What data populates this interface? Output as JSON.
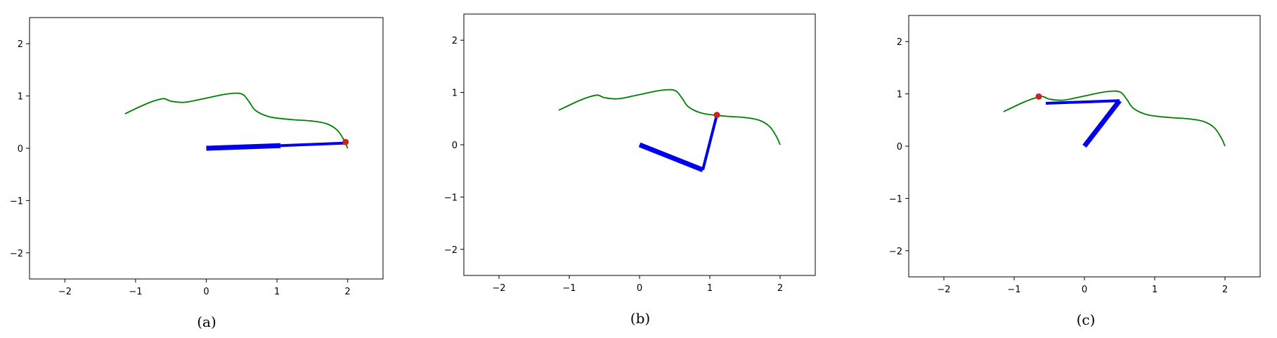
{
  "chart_data": [
    {
      "type": "line",
      "caption": "(a)",
      "xlim": [
        -2.5,
        2.5
      ],
      "ylim": [
        -2.5,
        2.5
      ],
      "xticks": [
        -2,
        -1,
        0,
        1,
        2
      ],
      "yticks": [
        -2,
        -1,
        0,
        1,
        2
      ],
      "tick_labels_x": [
        "−2",
        "−1",
        "0",
        "1",
        "2"
      ],
      "tick_labels_y": [
        "−2",
        "−1",
        "0",
        "1",
        "2"
      ],
      "grid": false,
      "curve": {
        "color": "#008000",
        "x": [
          -1.15,
          -0.9,
          -0.75,
          -0.6,
          -0.5,
          -0.3,
          0.0,
          0.3,
          0.5,
          0.6,
          0.7,
          0.9,
          1.2,
          1.5,
          1.7,
          1.85,
          1.95,
          2.0
        ],
        "y": [
          0.66,
          0.82,
          0.9,
          0.95,
          0.9,
          0.88,
          0.96,
          1.04,
          1.04,
          0.9,
          0.72,
          0.6,
          0.55,
          0.52,
          0.47,
          0.35,
          0.15,
          0.0
        ]
      },
      "arm": {
        "color": "#0000ee",
        "links": [
          [
            0.0,
            0.0,
            1.05,
            0.05
          ],
          [
            1.05,
            0.05,
            2.0,
            0.1
          ]
        ],
        "widths": [
          7,
          4
        ]
      },
      "end_effector": {
        "x": 1.97,
        "y": 0.12,
        "color": "#cc2222"
      }
    },
    {
      "type": "line",
      "caption": "(b)",
      "xlim": [
        -2.5,
        2.5
      ],
      "ylim": [
        -2.5,
        2.5
      ],
      "xticks": [
        -2,
        -1,
        0,
        1,
        2
      ],
      "yticks": [
        -2,
        -1,
        0,
        1,
        2
      ],
      "tick_labels_x": [
        "−2",
        "−1",
        "0",
        "1",
        "2"
      ],
      "tick_labels_y": [
        "−2",
        "−1",
        "0",
        "1",
        "2"
      ],
      "grid": false,
      "curve": {
        "color": "#008000",
        "x": [
          -1.15,
          -0.9,
          -0.75,
          -0.6,
          -0.5,
          -0.3,
          0.0,
          0.3,
          0.5,
          0.6,
          0.7,
          0.9,
          1.2,
          1.5,
          1.7,
          1.85,
          1.95,
          2.0
        ],
        "y": [
          0.66,
          0.82,
          0.9,
          0.95,
          0.9,
          0.88,
          0.96,
          1.04,
          1.04,
          0.9,
          0.72,
          0.6,
          0.55,
          0.52,
          0.47,
          0.35,
          0.15,
          0.0
        ]
      },
      "arm": {
        "color": "#0000ee",
        "links": [
          [
            0.0,
            0.0,
            0.9,
            -0.48
          ],
          [
            0.9,
            -0.48,
            1.1,
            0.57
          ]
        ],
        "widths": [
          7,
          4
        ]
      },
      "end_effector": {
        "x": 1.1,
        "y": 0.57,
        "color": "#cc2222"
      }
    },
    {
      "type": "line",
      "caption": "(c)",
      "xlim": [
        -2.5,
        2.5
      ],
      "ylim": [
        -2.5,
        2.5
      ],
      "xticks": [
        -2,
        -1,
        0,
        1,
        2
      ],
      "yticks": [
        -2,
        -1,
        0,
        1,
        2
      ],
      "tick_labels_x": [
        "−2",
        "−1",
        "0",
        "1",
        "2"
      ],
      "tick_labels_y": [
        "−2",
        "−1",
        "0",
        "1",
        "2"
      ],
      "grid": false,
      "curve": {
        "color": "#008000",
        "x": [
          -1.15,
          -0.9,
          -0.75,
          -0.6,
          -0.5,
          -0.3,
          0.0,
          0.3,
          0.5,
          0.6,
          0.7,
          0.9,
          1.2,
          1.5,
          1.7,
          1.85,
          1.95,
          2.0
        ],
        "y": [
          0.66,
          0.82,
          0.9,
          0.95,
          0.9,
          0.88,
          0.96,
          1.04,
          1.04,
          0.9,
          0.72,
          0.6,
          0.55,
          0.52,
          0.47,
          0.35,
          0.15,
          0.0
        ]
      },
      "arm": {
        "color": "#0000ee",
        "links": [
          [
            0.0,
            0.0,
            0.5,
            0.87
          ],
          [
            0.5,
            0.87,
            -0.55,
            0.82
          ]
        ],
        "widths": [
          7,
          4
        ]
      },
      "end_effector": {
        "x": -0.65,
        "y": 0.95,
        "color": "#cc2222"
      }
    }
  ]
}
